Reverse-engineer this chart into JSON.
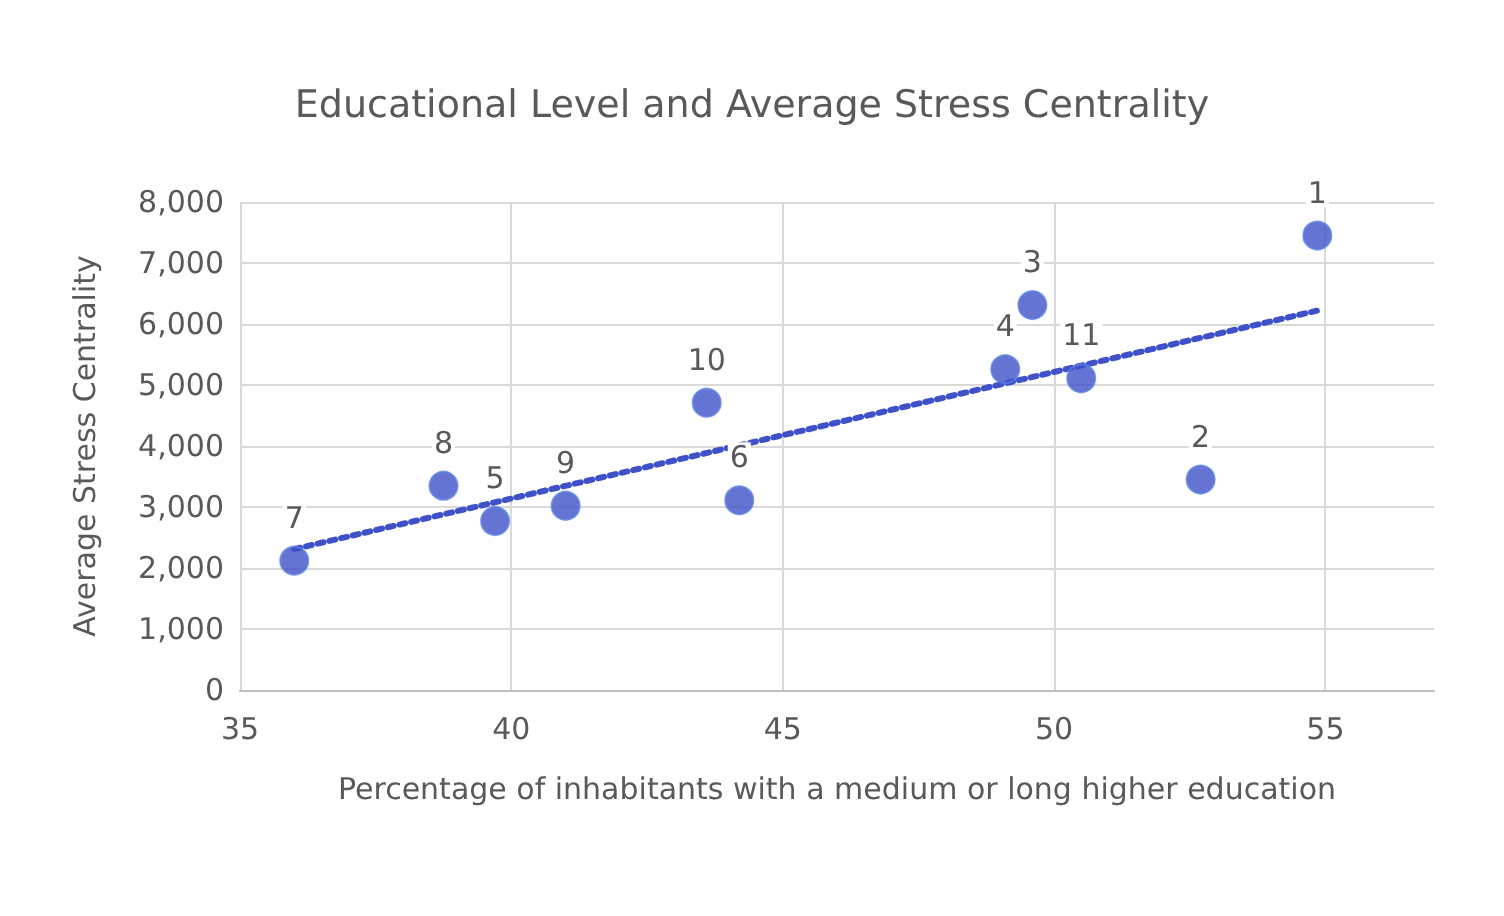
{
  "chart_data": {
    "type": "scatter",
    "title": "Educational Level and Average Stress Centrality",
    "xlabel": "Percentage of inhabitants with a medium or long higher education",
    "ylabel": "Average Stress Centrality",
    "series": [
      {
        "color": "#3f51c8",
        "x": [
          54.85,
          52.7,
          49.6,
          49.1,
          39.7,
          44.2,
          36.0,
          38.75,
          41.0,
          43.6,
          50.5
        ],
        "values": [
          7450,
          3450,
          6310,
          5260,
          2770,
          3110,
          2120,
          3350,
          3020,
          4710,
          5110
        ],
        "marker": "circle"
      },
      {
        "type": "line",
        "color": "#3f51c8",
        "x": [
          36.0,
          54.85
        ],
        "values": [
          2310,
          6220
        ],
        "line_style": "dotted",
        "marker": "none"
      }
    ],
    "annotations": [
      {
        "text": "1",
        "x": 54.85,
        "y": 7450
      },
      {
        "text": "2",
        "x": 52.7,
        "y": 3450
      },
      {
        "text": "3",
        "x": 49.6,
        "y": 6310
      },
      {
        "text": "4",
        "x": 49.1,
        "y": 5260
      },
      {
        "text": "5",
        "x": 39.7,
        "y": 2770
      },
      {
        "text": "6",
        "x": 44.2,
        "y": 3110
      },
      {
        "text": "7",
        "x": 36.0,
        "y": 2120
      },
      {
        "text": "8",
        "x": 38.75,
        "y": 3350
      },
      {
        "text": "9",
        "x": 41.0,
        "y": 3020
      },
      {
        "text": "10",
        "x": 43.6,
        "y": 4710
      },
      {
        "text": "11",
        "x": 50.5,
        "y": 5110
      }
    ],
    "xlim": [
      35,
      57
    ],
    "xticks": [
      35,
      40,
      45,
      50,
      55
    ],
    "ylim": [
      0,
      8000
    ],
    "yticks": [
      0,
      {
        "value": 1000,
        "label": "1,000"
      },
      {
        "value": 2000,
        "label": "2,000"
      },
      {
        "value": 3000,
        "label": "3,000"
      },
      {
        "value": 4000,
        "label": "4,000"
      },
      {
        "value": 5000,
        "label": "5,000"
      },
      {
        "value": 6000,
        "label": "6,000"
      },
      {
        "value": 7000,
        "label": "7,000"
      },
      {
        "value": 8000,
        "label": "8,000"
      }
    ],
    "grid": true
  }
}
